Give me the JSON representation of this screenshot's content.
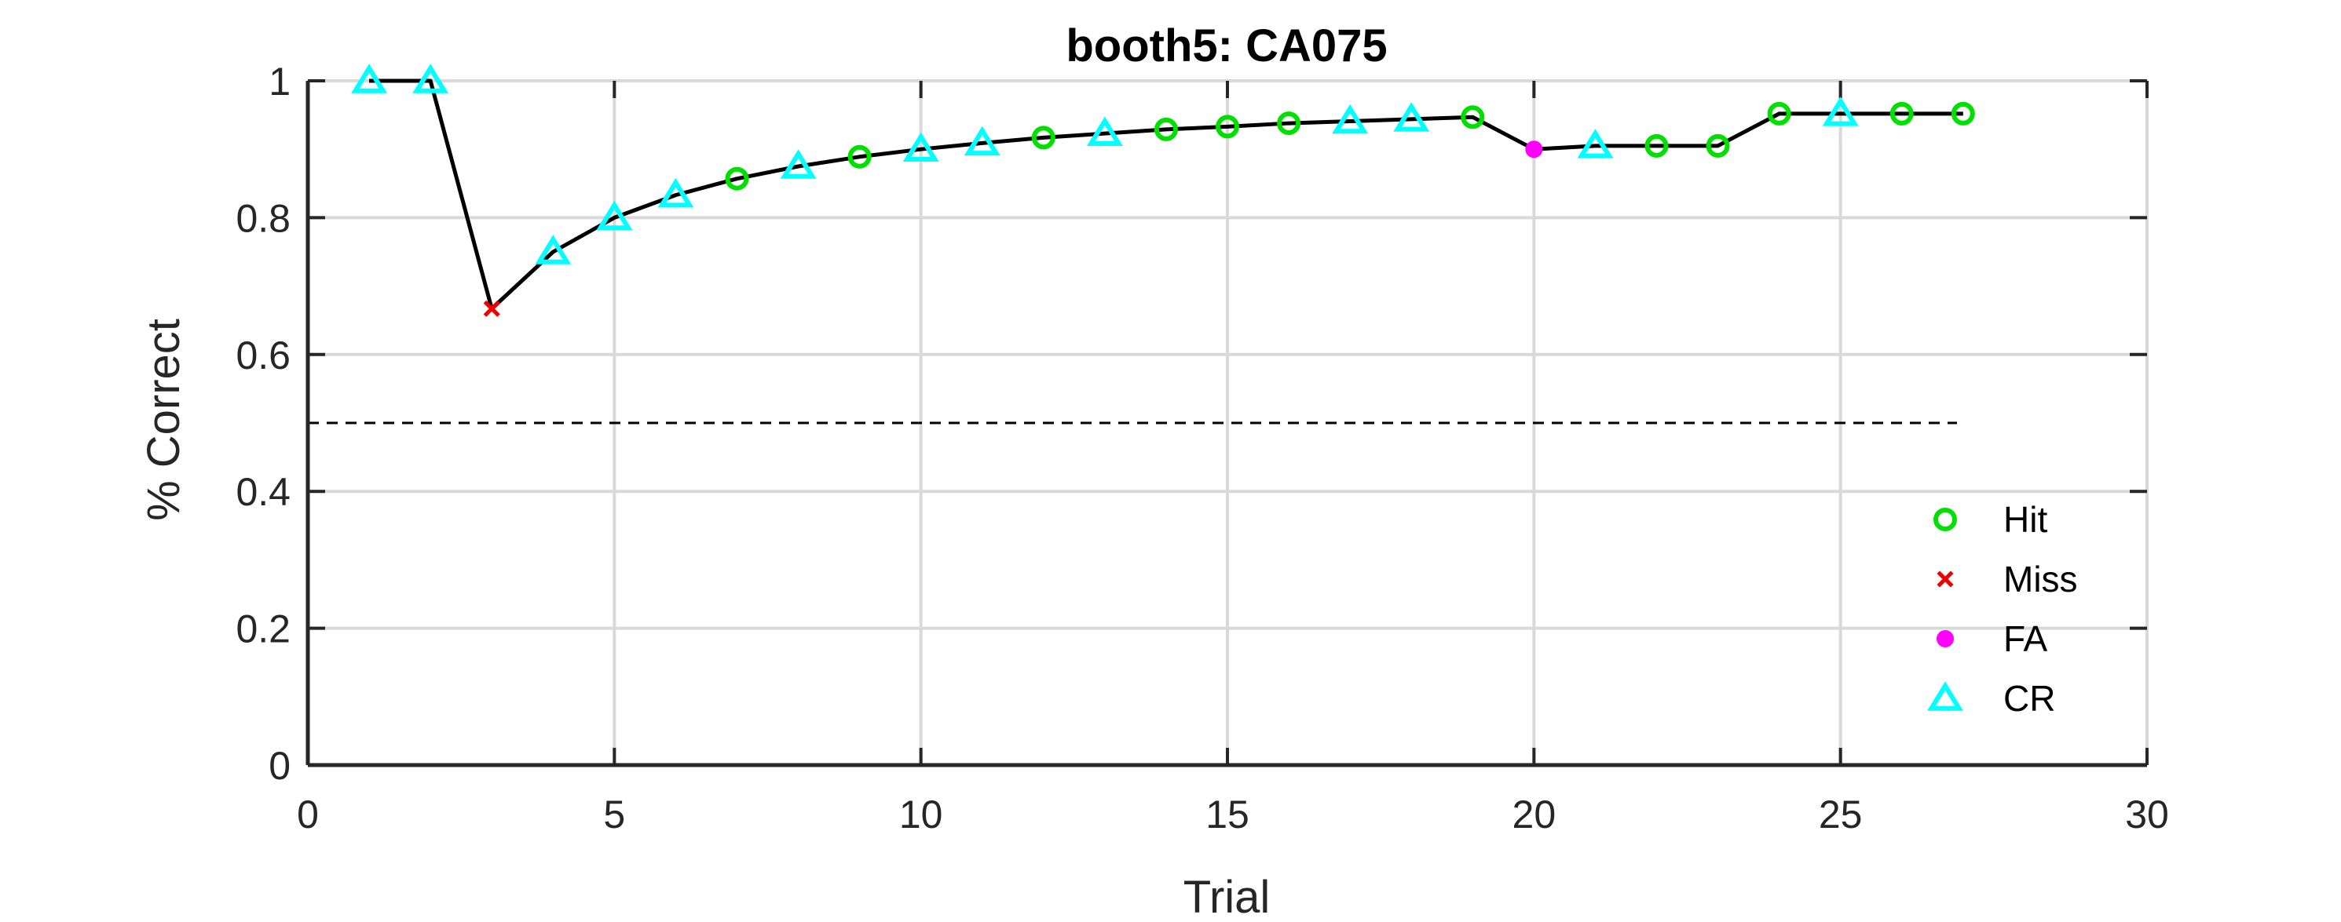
{
  "chart_data": {
    "type": "line",
    "title": "booth5: CA075",
    "xlabel": "Trial",
    "ylabel": "% Correct",
    "xlim": [
      0,
      30
    ],
    "ylim": [
      0,
      1
    ],
    "xticks": [
      "0",
      "5",
      "10",
      "15",
      "20",
      "25",
      "30"
    ],
    "yticks": [
      "0",
      "0.2",
      "0.4",
      "0.6",
      "0.8",
      "1"
    ],
    "grid": true,
    "legend_position": "bottom-right",
    "chance_level": 0.5,
    "chance_x_range": [
      0,
      26.9
    ],
    "colors": {
      "line": "#000000",
      "Hit": "#00e000",
      "Miss": "#ee0000",
      "FA": "#ff00ff",
      "CR": "#00ffff",
      "grid": "#d9d9d9",
      "axis": "#262626"
    },
    "legend": [
      "Hit",
      "Miss",
      "FA",
      "CR"
    ],
    "points": [
      {
        "x": 1,
        "y": 1.0,
        "type": "CR"
      },
      {
        "x": 2,
        "y": 1.0,
        "type": "CR"
      },
      {
        "x": 3,
        "y": 0.667,
        "type": "Miss"
      },
      {
        "x": 4,
        "y": 0.75,
        "type": "CR"
      },
      {
        "x": 5,
        "y": 0.8,
        "type": "CR"
      },
      {
        "x": 6,
        "y": 0.833,
        "type": "CR"
      },
      {
        "x": 7,
        "y": 0.857,
        "type": "Hit"
      },
      {
        "x": 8,
        "y": 0.875,
        "type": "CR"
      },
      {
        "x": 9,
        "y": 0.889,
        "type": "Hit"
      },
      {
        "x": 10,
        "y": 0.9,
        "type": "CR"
      },
      {
        "x": 11,
        "y": 0.909,
        "type": "CR"
      },
      {
        "x": 12,
        "y": 0.917,
        "type": "Hit"
      },
      {
        "x": 13,
        "y": 0.923,
        "type": "CR"
      },
      {
        "x": 14,
        "y": 0.929,
        "type": "Hit"
      },
      {
        "x": 15,
        "y": 0.933,
        "type": "Hit"
      },
      {
        "x": 16,
        "y": 0.938,
        "type": "Hit"
      },
      {
        "x": 17,
        "y": 0.941,
        "type": "CR"
      },
      {
        "x": 18,
        "y": 0.944,
        "type": "CR"
      },
      {
        "x": 19,
        "y": 0.947,
        "type": "Hit"
      },
      {
        "x": 20,
        "y": 0.9,
        "type": "FA"
      },
      {
        "x": 21,
        "y": 0.905,
        "type": "CR"
      },
      {
        "x": 22,
        "y": 0.905,
        "type": "Hit"
      },
      {
        "x": 23,
        "y": 0.905,
        "type": "Hit"
      },
      {
        "x": 24,
        "y": 0.952,
        "type": "Hit"
      },
      {
        "x": 25,
        "y": 0.952,
        "type": "CR"
      },
      {
        "x": 26,
        "y": 0.952,
        "type": "Hit"
      },
      {
        "x": 27,
        "y": 0.952,
        "type": "Hit"
      }
    ]
  }
}
